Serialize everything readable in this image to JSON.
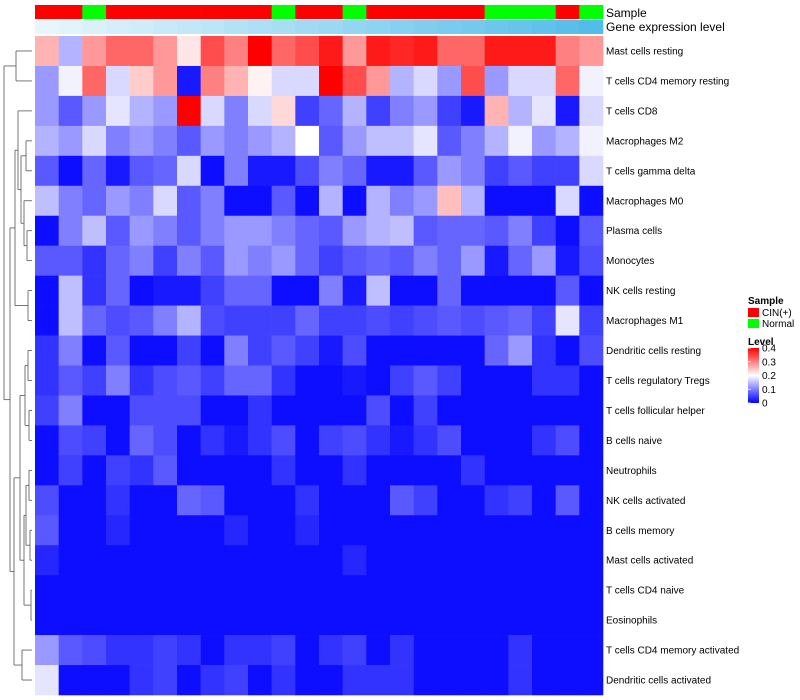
{
  "chart_data": {
    "type": "heatmap",
    "annotation_labels": [
      "Sample",
      "Gene expression level"
    ],
    "sample_annotation": [
      "CIN(+)",
      "CIN(+)",
      "Normal",
      "CIN(+)",
      "CIN(+)",
      "CIN(+)",
      "CIN(+)",
      "CIN(+)",
      "CIN(+)",
      "CIN(+)",
      "Normal",
      "CIN(+)",
      "CIN(+)",
      "Normal",
      "CIN(+)",
      "CIN(+)",
      "CIN(+)",
      "CIN(+)",
      "CIN(+)",
      "Normal",
      "Normal",
      "Normal",
      "CIN(+)",
      "Normal"
    ],
    "expression_level": [
      0.0,
      0.04,
      0.09,
      0.13,
      0.17,
      0.22,
      0.26,
      0.3,
      0.35,
      0.39,
      0.43,
      0.48,
      0.52,
      0.57,
      0.61,
      0.65,
      0.7,
      0.74,
      0.78,
      0.83,
      0.87,
      0.91,
      0.96,
      1.0
    ],
    "rows": [
      "Mast cells resting",
      "T cells CD4 memory resting",
      "T cells CD8",
      "Macrophages M2",
      "T cells gamma delta",
      "Macrophages M0",
      "Plasma cells",
      "Monocytes",
      "NK cells resting",
      "Macrophages M1",
      "Dendritic cells resting",
      "T cells regulatory  Tregs",
      "T cells follicular helper",
      "B cells naive",
      "Neutrophils",
      "NK cells activated",
      "B cells memory",
      "Mast cells activated",
      "T cells CD4 naive",
      "Eosinophils",
      "T cells CD4 memory activated",
      "Dendritic cells activated"
    ],
    "values": [
      [
        0.26,
        0.14,
        0.28,
        0.32,
        0.32,
        0.28,
        0.22,
        0.34,
        0.3,
        0.4,
        0.32,
        0.34,
        0.38,
        0.28,
        0.38,
        0.37,
        0.38,
        0.32,
        0.32,
        0.38,
        0.38,
        0.38,
        0.3,
        0.28
      ],
      [
        0.12,
        0.19,
        0.32,
        0.17,
        0.24,
        0.28,
        0.02,
        0.3,
        0.26,
        0.21,
        0.17,
        0.17,
        0.4,
        0.34,
        0.28,
        0.14,
        0.17,
        0.12,
        0.34,
        0.12,
        0.17,
        0.17,
        0.32,
        0.19
      ],
      [
        0.12,
        0.07,
        0.12,
        0.18,
        0.14,
        0.12,
        0.4,
        0.17,
        0.1,
        0.17,
        0.23,
        0.05,
        0.08,
        0.14,
        0.05,
        0.1,
        0.12,
        0.05,
        0.02,
        0.26,
        0.14,
        0.18,
        0.02,
        0.17
      ],
      [
        0.14,
        0.12,
        0.17,
        0.1,
        0.12,
        0.1,
        0.07,
        0.12,
        0.1,
        0.12,
        0.14,
        0.2,
        0.07,
        0.12,
        0.15,
        0.15,
        0.18,
        0.07,
        0.1,
        0.14,
        0.19,
        0.12,
        0.14,
        0.19
      ],
      [
        0.07,
        0.01,
        0.08,
        0.02,
        0.07,
        0.08,
        0.17,
        0.01,
        0.1,
        0.02,
        0.02,
        0.06,
        0.1,
        0.08,
        0.02,
        0.02,
        0.07,
        0.12,
        0.1,
        0.05,
        0.07,
        0.05,
        0.05,
        0.17
      ],
      [
        0.15,
        0.1,
        0.08,
        0.12,
        0.1,
        0.17,
        0.07,
        0.1,
        0.01,
        0.01,
        0.07,
        0.01,
        0.14,
        0.01,
        0.14,
        0.1,
        0.12,
        0.25,
        0.14,
        0.01,
        0.01,
        0.01,
        0.17,
        0.01
      ],
      [
        0.01,
        0.1,
        0.15,
        0.07,
        0.12,
        0.1,
        0.07,
        0.1,
        0.12,
        0.12,
        0.1,
        0.08,
        0.07,
        0.12,
        0.14,
        0.15,
        0.07,
        0.08,
        0.08,
        0.07,
        0.1,
        0.05,
        0.01,
        0.07
      ],
      [
        0.07,
        0.07,
        0.04,
        0.08,
        0.1,
        0.05,
        0.1,
        0.07,
        0.12,
        0.1,
        0.12,
        0.08,
        0.05,
        0.07,
        0.08,
        0.07,
        0.1,
        0.08,
        0.12,
        0.02,
        0.08,
        0.12,
        0.02,
        0.06
      ],
      [
        0.01,
        0.15,
        0.04,
        0.08,
        0.01,
        0.02,
        0.02,
        0.05,
        0.08,
        0.08,
        0.01,
        0.01,
        0.1,
        0.02,
        0.15,
        0.01,
        0.01,
        0.08,
        0.01,
        0.01,
        0.01,
        0.01,
        0.07,
        0.01
      ],
      [
        0.01,
        0.15,
        0.08,
        0.06,
        0.07,
        0.1,
        0.14,
        0.06,
        0.05,
        0.05,
        0.05,
        0.08,
        0.05,
        0.05,
        0.06,
        0.05,
        0.06,
        0.07,
        0.06,
        0.07,
        0.08,
        0.05,
        0.18,
        0.05
      ],
      [
        0.04,
        0.1,
        0.01,
        0.07,
        0.01,
        0.01,
        0.05,
        0.01,
        0.1,
        0.05,
        0.07,
        0.05,
        0.02,
        0.06,
        0.01,
        0.01,
        0.01,
        0.01,
        0.01,
        0.08,
        0.12,
        0.04,
        0.01,
        0.06
      ],
      [
        0.04,
        0.07,
        0.05,
        0.1,
        0.04,
        0.06,
        0.07,
        0.05,
        0.08,
        0.08,
        0.04,
        0.01,
        0.01,
        0.02,
        0.01,
        0.05,
        0.07,
        0.05,
        0.01,
        0.01,
        0.01,
        0.04,
        0.04,
        0.01
      ],
      [
        0.05,
        0.1,
        0.01,
        0.01,
        0.06,
        0.06,
        0.06,
        0.01,
        0.01,
        0.04,
        0.01,
        0.01,
        0.01,
        0.01,
        0.06,
        0.01,
        0.05,
        0.01,
        0.01,
        0.01,
        0.01,
        0.01,
        0.01,
        0.01
      ],
      [
        0.01,
        0.06,
        0.05,
        0.01,
        0.08,
        0.06,
        0.01,
        0.04,
        0.02,
        0.04,
        0.06,
        0.01,
        0.05,
        0.06,
        0.04,
        0.02,
        0.04,
        0.06,
        0.01,
        0.01,
        0.01,
        0.04,
        0.06,
        0.01
      ],
      [
        0.01,
        0.05,
        0.01,
        0.05,
        0.04,
        0.07,
        0.01,
        0.01,
        0.01,
        0.01,
        0.04,
        0.01,
        0.01,
        0.04,
        0.01,
        0.01,
        0.01,
        0.01,
        0.04,
        0.01,
        0.01,
        0.01,
        0.01,
        0.01
      ],
      [
        0.06,
        0.01,
        0.01,
        0.04,
        0.01,
        0.01,
        0.08,
        0.07,
        0.01,
        0.01,
        0.01,
        0.04,
        0.01,
        0.01,
        0.01,
        0.07,
        0.05,
        0.01,
        0.01,
        0.04,
        0.05,
        0.01,
        0.07,
        0.01
      ],
      [
        0.07,
        0.01,
        0.01,
        0.03,
        0.01,
        0.01,
        0.01,
        0.01,
        0.03,
        0.01,
        0.01,
        0.03,
        0.01,
        0.01,
        0.01,
        0.01,
        0.01,
        0.01,
        0.01,
        0.01,
        0.01,
        0.01,
        0.01,
        0.01
      ],
      [
        0.03,
        0.01,
        0.01,
        0.01,
        0.01,
        0.01,
        0.01,
        0.01,
        0.01,
        0.01,
        0.01,
        0.01,
        0.01,
        0.03,
        0.01,
        0.01,
        0.01,
        0.01,
        0.01,
        0.01,
        0.01,
        0.01,
        0.01,
        0.01
      ],
      [
        0.01,
        0.01,
        0.01,
        0.01,
        0.01,
        0.01,
        0.01,
        0.01,
        0.01,
        0.01,
        0.01,
        0.01,
        0.01,
        0.01,
        0.01,
        0.01,
        0.01,
        0.01,
        0.01,
        0.01,
        0.01,
        0.01,
        0.01,
        0.01
      ],
      [
        0.01,
        0.01,
        0.01,
        0.01,
        0.01,
        0.01,
        0.01,
        0.01,
        0.01,
        0.01,
        0.01,
        0.01,
        0.01,
        0.01,
        0.01,
        0.01,
        0.01,
        0.01,
        0.01,
        0.01,
        0.01,
        0.01,
        0.01,
        0.01
      ],
      [
        0.12,
        0.07,
        0.06,
        0.04,
        0.04,
        0.05,
        0.04,
        0.01,
        0.04,
        0.04,
        0.05,
        0.01,
        0.04,
        0.05,
        0.01,
        0.04,
        0.01,
        0.01,
        0.01,
        0.01,
        0.04,
        0.01,
        0.01,
        0.01
      ],
      [
        0.18,
        0.01,
        0.01,
        0.01,
        0.04,
        0.05,
        0.01,
        0.04,
        0.05,
        0.01,
        0.04,
        0.01,
        0.01,
        0.04,
        0.04,
        0.04,
        0.01,
        0.01,
        0.01,
        0.01,
        0.04,
        0.01,
        0.01,
        0.01
      ]
    ],
    "color_scale": {
      "low": "#0000ff",
      "mid": "#ffffff",
      "high": "#ff0000",
      "min": 0,
      "max": 0.4
    },
    "legend": {
      "sample_title": "Sample",
      "sample_items": [
        {
          "label": "CIN(+)",
          "color": "#ff0000"
        },
        {
          "label": "Normal",
          "color": "#00ff00"
        }
      ],
      "level_title": "Level",
      "level_ticks": [
        {
          "label": "0.4",
          "value": 0.4
        },
        {
          "label": "0.3",
          "value": 0.3
        },
        {
          "label": "0.2",
          "value": 0.2
        },
        {
          "label": "0.1",
          "value": 0.1
        },
        {
          "label": "0",
          "value": 0.0
        }
      ]
    },
    "dendrogram": "row clustering tree (left side)"
  }
}
